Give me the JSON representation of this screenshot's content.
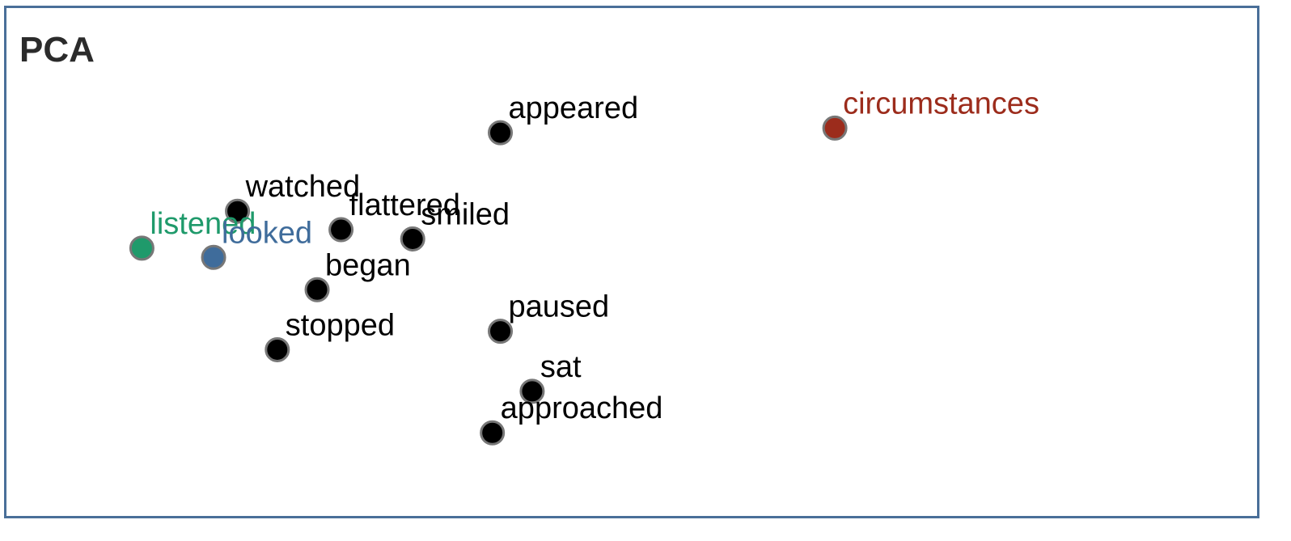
{
  "chart_data": {
    "type": "scatter",
    "title": "PCA",
    "xlabel": "",
    "ylabel": "",
    "grid": false,
    "legend": "none",
    "points": [
      {
        "label": "appeared",
        "x": 0.62,
        "y": 0.83,
        "color": "#000000"
      },
      {
        "label": "circumstances",
        "x": 1.04,
        "y": 0.84,
        "color": "#9c2c1c"
      },
      {
        "label": "watched",
        "x": 0.29,
        "y": 0.66,
        "color": "#000000"
      },
      {
        "label": "flattered",
        "x": 0.42,
        "y": 0.62,
        "color": "#000000"
      },
      {
        "label": "smiled",
        "x": 0.51,
        "y": 0.6,
        "color": "#000000"
      },
      {
        "label": "listened",
        "x": 0.17,
        "y": 0.58,
        "color": "#1f9a6b"
      },
      {
        "label": "looked",
        "x": 0.26,
        "y": 0.56,
        "color": "#3f6c9b"
      },
      {
        "label": "began",
        "x": 0.39,
        "y": 0.49,
        "color": "#000000"
      },
      {
        "label": "stopped",
        "x": 0.34,
        "y": 0.36,
        "color": "#000000"
      },
      {
        "label": "paused",
        "x": 0.62,
        "y": 0.4,
        "color": "#000000"
      },
      {
        "label": "sat",
        "x": 0.66,
        "y": 0.27,
        "color": "#000000"
      },
      {
        "label": "approached",
        "x": 0.61,
        "y": 0.18,
        "color": "#000000"
      }
    ],
    "xlim": [
      0,
      1.57
    ],
    "ylim": [
      0,
      1.1
    ]
  },
  "style": {
    "frame_color": "#4a6f99",
    "point_stroke": "#777777",
    "title_color": "#2b2b2b"
  }
}
